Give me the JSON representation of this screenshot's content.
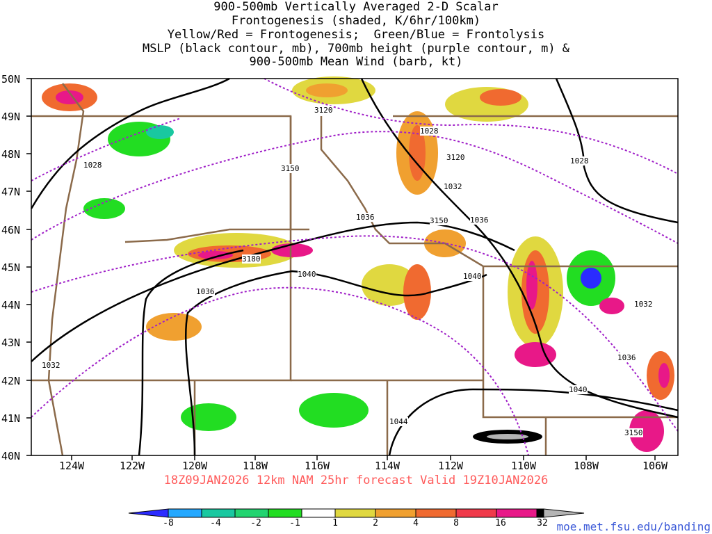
{
  "title_lines": [
    "900-500mb Vertically Averaged 2-D Scalar",
    "Frontogenesis (shaded, K/6hr/100km)",
    "Yellow/Red = Frontogenesis;  Green/Blue = Frontolysis",
    "MSLP (black contour, mb), 700mb height (purple contour, m) &",
    "900-500mb Mean Wind (barb, kt)"
  ],
  "latitude_labels": [
    "50N",
    "49N",
    "48N",
    "47N",
    "46N",
    "45N",
    "44N",
    "43N",
    "42N",
    "41N",
    "40N"
  ],
  "longitude_labels": [
    "124W",
    "122W",
    "120W",
    "118W",
    "116W",
    "114W",
    "112W",
    "110W",
    "108W",
    "106W"
  ],
  "forecast_line": "18Z09JAN2026 12km NAM 25hr forecast Valid 19Z10JAN2026",
  "colorbar": {
    "labels": [
      "-8",
      "-4",
      "-2",
      "-1",
      "1",
      "2",
      "4",
      "8",
      "16",
      "32"
    ],
    "colors": [
      "#2b2bff",
      "#24a8ff",
      "#19c8a0",
      "#22d470",
      "#22dd22",
      "#ffffff",
      "#e0d840",
      "#f0a030",
      "#f06a30",
      "#f03a4a",
      "#e81888",
      "#000000",
      "#b4b4b4"
    ]
  },
  "mslp_labels": [
    "1028",
    "1028",
    "1028",
    "1032",
    "1036",
    "1036",
    "1036",
    "1040",
    "1040",
    "1040",
    "1044",
    "1032",
    "1036",
    "1032"
  ],
  "height_labels": [
    "3120",
    "3150",
    "3120",
    "3150",
    "3180",
    "3150"
  ],
  "credit": "moe.met.fsu.edu/banding",
  "colors": {
    "mslp": "#000000",
    "height": "#a020c8",
    "borders": "#8b6a4a",
    "forecast_text": "#ff5a5a"
  }
}
